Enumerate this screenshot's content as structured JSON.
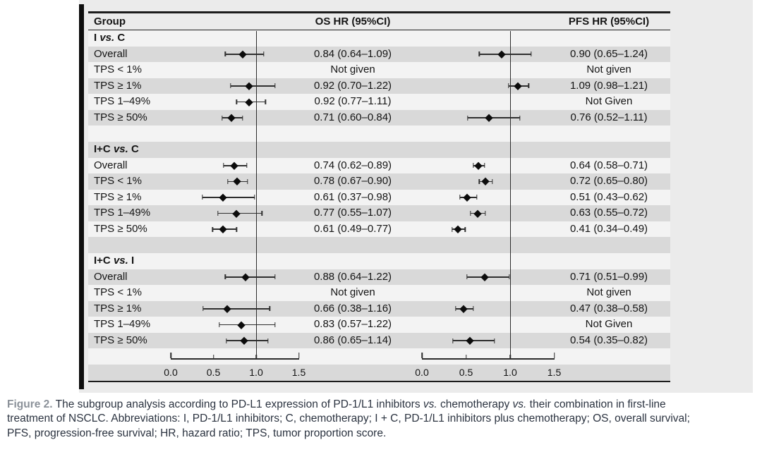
{
  "colors": {
    "figure_background": "#ebebeb",
    "row_gray": "#d9d9d9",
    "row_light": "#f3f3f3",
    "left_bar": "#0d0d0d",
    "rule_line": "#1c1c1c",
    "marker_black": "#0c0c0c",
    "table_text": "#141414",
    "caption_label_gray": "#8b9199",
    "caption_text": "#2b3340"
  },
  "chart_data": {
    "type": "forest",
    "columns": [
      "Group",
      "OS HR (95%CI)",
      "PFS HR (95%CI)"
    ],
    "axis": {
      "ticks": [
        0,
        0.5,
        1,
        1.5
      ],
      "tick_labels": [
        "0.0",
        "0.5",
        "1.0",
        "1.5"
      ],
      "xlim": [
        0,
        1.5
      ],
      "reference_line": 1.0
    },
    "sections": [
      {
        "label": "I vs. C",
        "rows": [
          {
            "group": "Overall",
            "os": {
              "hr": 0.84,
              "lo": 0.64,
              "hi": 1.09,
              "text": "0.84 (0.64–1.09)"
            },
            "pfs": {
              "hr": 0.9,
              "lo": 0.65,
              "hi": 1.24,
              "text": "0.90 (0.65–1.24)"
            }
          },
          {
            "group": "TPS < 1%",
            "os": {
              "text": "Not given"
            },
            "pfs": {
              "text": "Not given"
            }
          },
          {
            "group": "TPS ≥ 1%",
            "os": {
              "hr": 0.92,
              "lo": 0.7,
              "hi": 1.22,
              "text": "0.92 (0.70–1.22)"
            },
            "pfs": {
              "hr": 1.09,
              "lo": 0.98,
              "hi": 1.21,
              "text": "1.09 (0.98–1.21)"
            }
          },
          {
            "group": "TPS 1–49%",
            "os": {
              "hr": 0.92,
              "lo": 0.77,
              "hi": 1.11,
              "text": "0.92 (0.77–1.11)"
            },
            "pfs": {
              "text": "Not Given"
            }
          },
          {
            "group": "TPS ≥ 50%",
            "os": {
              "hr": 0.71,
              "lo": 0.6,
              "hi": 0.84,
              "text": "0.71 (0.60–0.84)"
            },
            "pfs": {
              "hr": 0.76,
              "lo": 0.52,
              "hi": 1.11,
              "text": "0.76 (0.52–1.11)"
            }
          }
        ]
      },
      {
        "label": "I+C vs. C",
        "rows": [
          {
            "group": "Overall",
            "os": {
              "hr": 0.74,
              "lo": 0.62,
              "hi": 0.89,
              "text": "0.74 (0.62–0.89)"
            },
            "pfs": {
              "hr": 0.64,
              "lo": 0.58,
              "hi": 0.71,
              "text": "0.64 (0.58–0.71)"
            }
          },
          {
            "group": "TPS < 1%",
            "os": {
              "hr": 0.78,
              "lo": 0.67,
              "hi": 0.9,
              "text": "0.78 (0.67–0.90)"
            },
            "pfs": {
              "hr": 0.72,
              "lo": 0.65,
              "hi": 0.8,
              "text": "0.72 (0.65–0.80)"
            }
          },
          {
            "group": "TPS ≥ 1%",
            "os": {
              "hr": 0.61,
              "lo": 0.37,
              "hi": 0.98,
              "text": "0.61 (0.37–0.98)"
            },
            "pfs": {
              "hr": 0.51,
              "lo": 0.43,
              "hi": 0.62,
              "text": "0.51 (0.43–0.62)"
            }
          },
          {
            "group": "TPS 1–49%",
            "os": {
              "hr": 0.77,
              "lo": 0.55,
              "hi": 1.07,
              "text": "0.77 (0.55–1.07)"
            },
            "pfs": {
              "hr": 0.63,
              "lo": 0.55,
              "hi": 0.72,
              "text": "0.63 (0.55–0.72)"
            }
          },
          {
            "group": "TPS ≥ 50%",
            "os": {
              "hr": 0.61,
              "lo": 0.49,
              "hi": 0.77,
              "text": "0.61 (0.49–0.77)"
            },
            "pfs": {
              "hr": 0.41,
              "lo": 0.34,
              "hi": 0.49,
              "text": "0.41 (0.34–0.49)"
            }
          }
        ]
      },
      {
        "label": "I+C vs. I",
        "rows": [
          {
            "group": "Overall",
            "os": {
              "hr": 0.88,
              "lo": 0.64,
              "hi": 1.22,
              "text": "0.88 (0.64–1.22)"
            },
            "pfs": {
              "hr": 0.71,
              "lo": 0.51,
              "hi": 0.99,
              "text": "0.71 (0.51–0.99)"
            }
          },
          {
            "group": "TPS < 1%",
            "os": {
              "text": "Not given"
            },
            "pfs": {
              "text": "Not given"
            }
          },
          {
            "group": "TPS ≥ 1%",
            "os": {
              "hr": 0.66,
              "lo": 0.38,
              "hi": 1.16,
              "text": "0.66 (0.38–1.16)"
            },
            "pfs": {
              "hr": 0.47,
              "lo": 0.38,
              "hi": 0.58,
              "text": "0.47 (0.38–0.58)"
            }
          },
          {
            "group": "TPS 1–49%",
            "os": {
              "hr": 0.83,
              "lo": 0.57,
              "hi": 1.22,
              "text": "0.83 (0.57–1.22)"
            },
            "pfs": {
              "text": "Not Given"
            }
          },
          {
            "group": "TPS ≥ 50%",
            "os": {
              "hr": 0.86,
              "lo": 0.65,
              "hi": 1.14,
              "text": "0.86 (0.65–1.14)"
            },
            "pfs": {
              "hr": 0.54,
              "lo": 0.35,
              "hi": 0.82,
              "text": "0.54 (0.35–0.82)"
            }
          }
        ]
      }
    ]
  },
  "caption": {
    "label": "Figure 2.",
    "line1": " The subgroup analysis according to PD-L1 expression of PD-1/L1 inhibitors vs. chemotherapy vs. their combination in first-line",
    "line2": "treatment of NSCLC. Abbreviations: I, PD-1/L1 inhibitors; C, chemotherapy; I + C, PD-1/L1 inhibitors plus chemotherapy; OS, overall survival;",
    "line3": "PFS, progression-free survival; HR, hazard ratio; TPS, tumor proportion score."
  }
}
